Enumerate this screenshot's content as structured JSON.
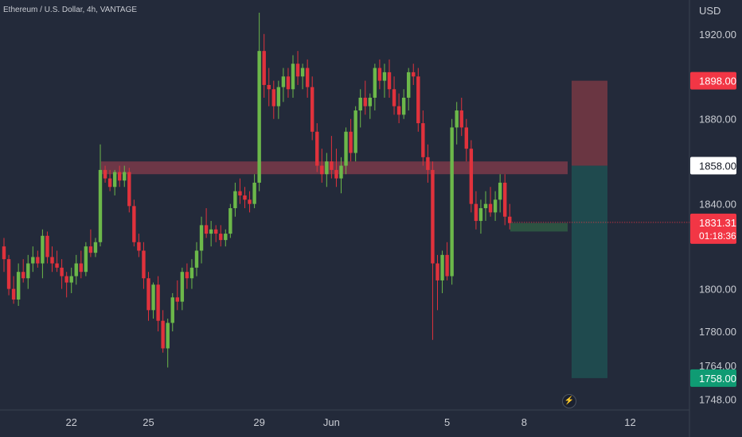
{
  "header": {
    "symbol_line": "Ethereum / U.S. Dollar, 4h, VANTAGE",
    "currency": "USD"
  },
  "colors": {
    "background": "#232a3a",
    "up": "#6cb84a",
    "down": "#e0323c",
    "resistance_zone": "#7a3a4a",
    "support_zone": "#2f5a44",
    "stop_zone": "#6a3642",
    "target_zone": "#1f4a4e",
    "price_label": "#f23645",
    "target_label": "#0f9b73"
  },
  "icons": {
    "replay": "lightning-icon"
  },
  "chart_data": {
    "type": "candlestick",
    "title": "Ethereum / U.S. Dollar, 4h, VANTAGE",
    "ylabel": "USD",
    "ylim": [
      1743,
      1936
    ],
    "x_ticks": [
      "22",
      "25",
      "29",
      "Jun",
      "5",
      "8",
      "12"
    ],
    "y_ticks": [
      1920,
      1880,
      1840,
      1800,
      1780,
      1764,
      1748
    ],
    "y_tick_labels": [
      "1920.00",
      "1880.00",
      "1840.00",
      "1800.00",
      "1780.00",
      "1764.00",
      "1748.00"
    ],
    "last_price": {
      "value": 1831.31,
      "label": "1831.31",
      "countdown": "01:18:36"
    },
    "position": {
      "stop": {
        "value": 1898,
        "label": "1898.00"
      },
      "entry": {
        "value": 1858,
        "label": "1858.00"
      },
      "target": {
        "value": 1758,
        "label": "1758.00"
      }
    },
    "zones": [
      {
        "kind": "resistance",
        "from": 1854,
        "to": 1860
      },
      {
        "kind": "support",
        "from": 1827,
        "to": 1831
      }
    ],
    "candles": [
      [
        1820,
        1824,
        1808,
        1814
      ],
      [
        1814,
        1816,
        1797,
        1800
      ],
      [
        1800,
        1806,
        1793,
        1795
      ],
      [
        1795,
        1812,
        1792,
        1808
      ],
      [
        1808,
        1814,
        1803,
        1805
      ],
      [
        1805,
        1816,
        1800,
        1812
      ],
      [
        1812,
        1820,
        1808,
        1815
      ],
      [
        1815,
        1818,
        1810,
        1812
      ],
      [
        1812,
        1828,
        1805,
        1825
      ],
      [
        1825,
        1827,
        1812,
        1815
      ],
      [
        1815,
        1820,
        1808,
        1812
      ],
      [
        1812,
        1818,
        1808,
        1810
      ],
      [
        1810,
        1814,
        1800,
        1806
      ],
      [
        1806,
        1808,
        1796,
        1803
      ],
      [
        1803,
        1810,
        1798,
        1806
      ],
      [
        1806,
        1816,
        1802,
        1812
      ],
      [
        1812,
        1818,
        1805,
        1808
      ],
      [
        1808,
        1822,
        1806,
        1820
      ],
      [
        1820,
        1828,
        1815,
        1817
      ],
      [
        1817,
        1824,
        1815,
        1822
      ],
      [
        1822,
        1868,
        1820,
        1856
      ],
      [
        1856,
        1858,
        1850,
        1852
      ],
      [
        1852,
        1856,
        1846,
        1848
      ],
      [
        1848,
        1856,
        1844,
        1855
      ],
      [
        1855,
        1858,
        1848,
        1851
      ],
      [
        1851,
        1858,
        1848,
        1855
      ],
      [
        1855,
        1857,
        1836,
        1839
      ],
      [
        1839,
        1842,
        1820,
        1822
      ],
      [
        1822,
        1826,
        1815,
        1818
      ],
      [
        1818,
        1822,
        1800,
        1805
      ],
      [
        1805,
        1808,
        1785,
        1790
      ],
      [
        1790,
        1803,
        1786,
        1802
      ],
      [
        1802,
        1806,
        1780,
        1785
      ],
      [
        1785,
        1790,
        1770,
        1772
      ],
      [
        1772,
        1786,
        1763,
        1784
      ],
      [
        1784,
        1798,
        1780,
        1796
      ],
      [
        1796,
        1804,
        1790,
        1794
      ],
      [
        1794,
        1810,
        1790,
        1808
      ],
      [
        1808,
        1812,
        1800,
        1805
      ],
      [
        1805,
        1814,
        1800,
        1810
      ],
      [
        1810,
        1822,
        1806,
        1818
      ],
      [
        1818,
        1834,
        1812,
        1830
      ],
      [
        1830,
        1838,
        1824,
        1826
      ],
      [
        1826,
        1832,
        1820,
        1828
      ],
      [
        1828,
        1830,
        1822,
        1826
      ],
      [
        1826,
        1830,
        1820,
        1823
      ],
      [
        1823,
        1828,
        1820,
        1826
      ],
      [
        1826,
        1840,
        1824,
        1838
      ],
      [
        1838,
        1850,
        1834,
        1846
      ],
      [
        1846,
        1852,
        1840,
        1844
      ],
      [
        1844,
        1848,
        1838,
        1842
      ],
      [
        1842,
        1846,
        1836,
        1840
      ],
      [
        1840,
        1854,
        1838,
        1850
      ],
      [
        1850,
        1930,
        1846,
        1912
      ],
      [
        1912,
        1920,
        1890,
        1896
      ],
      [
        1896,
        1904,
        1886,
        1894
      ],
      [
        1894,
        1898,
        1880,
        1886
      ],
      [
        1886,
        1898,
        1880,
        1895
      ],
      [
        1895,
        1904,
        1888,
        1900
      ],
      [
        1900,
        1904,
        1890,
        1894
      ],
      [
        1894,
        1910,
        1890,
        1906
      ],
      [
        1906,
        1912,
        1896,
        1900
      ],
      [
        1900,
        1906,
        1894,
        1904
      ],
      [
        1904,
        1908,
        1890,
        1895
      ],
      [
        1895,
        1900,
        1870,
        1874
      ],
      [
        1874,
        1878,
        1855,
        1858
      ],
      [
        1858,
        1866,
        1850,
        1854
      ],
      [
        1854,
        1864,
        1848,
        1860
      ],
      [
        1860,
        1872,
        1852,
        1856
      ],
      [
        1856,
        1866,
        1848,
        1852
      ],
      [
        1852,
        1862,
        1845,
        1858
      ],
      [
        1858,
        1876,
        1854,
        1874
      ],
      [
        1874,
        1880,
        1860,
        1864
      ],
      [
        1864,
        1886,
        1860,
        1884
      ],
      [
        1884,
        1894,
        1876,
        1890
      ],
      [
        1890,
        1898,
        1882,
        1886
      ],
      [
        1886,
        1892,
        1880,
        1890
      ],
      [
        1890,
        1906,
        1884,
        1904
      ],
      [
        1904,
        1908,
        1894,
        1898
      ],
      [
        1898,
        1906,
        1890,
        1902
      ],
      [
        1902,
        1908,
        1890,
        1894
      ],
      [
        1894,
        1900,
        1882,
        1886
      ],
      [
        1886,
        1892,
        1878,
        1882
      ],
      [
        1882,
        1894,
        1880,
        1890
      ],
      [
        1890,
        1904,
        1884,
        1902
      ],
      [
        1902,
        1906,
        1896,
        1900
      ],
      [
        1900,
        1904,
        1874,
        1878
      ],
      [
        1878,
        1884,
        1858,
        1862
      ],
      [
        1862,
        1868,
        1850,
        1856
      ],
      [
        1856,
        1860,
        1776,
        1812
      ],
      [
        1812,
        1816,
        1790,
        1804
      ],
      [
        1804,
        1818,
        1798,
        1816
      ],
      [
        1816,
        1822,
        1804,
        1806
      ],
      [
        1806,
        1880,
        1802,
        1876
      ],
      [
        1876,
        1888,
        1868,
        1884
      ],
      [
        1884,
        1890,
        1872,
        1876
      ],
      [
        1876,
        1880,
        1860,
        1866
      ],
      [
        1866,
        1870,
        1836,
        1840
      ],
      [
        1840,
        1846,
        1828,
        1832
      ],
      [
        1832,
        1842,
        1826,
        1838
      ],
      [
        1838,
        1846,
        1832,
        1840
      ],
      [
        1840,
        1848,
        1834,
        1836
      ],
      [
        1836,
        1846,
        1832,
        1842
      ],
      [
        1842,
        1854,
        1836,
        1850
      ],
      [
        1850,
        1854,
        1830,
        1834
      ],
      [
        1834,
        1840,
        1828,
        1831
      ]
    ]
  }
}
